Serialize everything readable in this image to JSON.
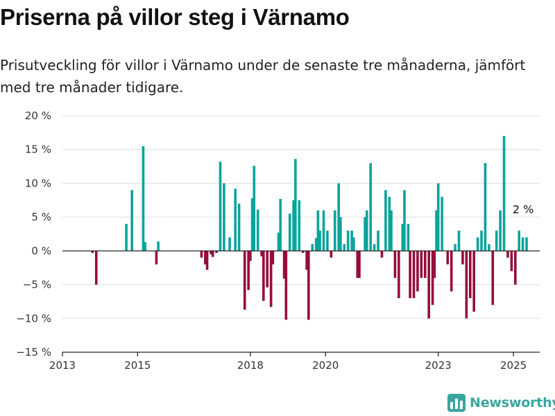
{
  "title": "Priserna på villor steg i Värnamo",
  "subtitle": "Prisutveckling för villor i Värnamo under de senaste tre månaderna, jämfört med tre månader tidigare.",
  "brand": {
    "name": "Newsworthy",
    "color": "#3aa6a0"
  },
  "colors": {
    "positive": "#0ca39b",
    "negative": "#960c3c",
    "axis": "#222222",
    "grid": "#dddddd"
  },
  "chart_data": {
    "type": "bar",
    "y_ticks": [
      "20 %",
      "15 %",
      "10 %",
      "5 %",
      "0 %",
      "−5 %",
      "−10 %",
      "−15 %"
    ],
    "y_tick_values": [
      20,
      15,
      10,
      5,
      0,
      -5,
      -10,
      -15
    ],
    "x_ticks": [
      "2013",
      "2015",
      "2018",
      "2020",
      "2023",
      "2025"
    ],
    "x_tick_values": [
      2013,
      2015,
      2018,
      2020,
      2023,
      2025
    ],
    "ylim": [
      -15,
      20
    ],
    "xlim": [
      2013,
      2025.7
    ],
    "grid": true,
    "annotation": {
      "text": "2 %",
      "x": 2025.0,
      "y": 2
    },
    "series": [
      {
        "values": [
          [
            2013.8,
            -0.3
          ],
          [
            2013.9,
            -5
          ],
          [
            2014.7,
            4
          ],
          [
            2014.85,
            9
          ],
          [
            2015.15,
            15.5
          ],
          [
            2015.2,
            1.3
          ],
          [
            2015.5,
            -2
          ],
          [
            2015.55,
            1.4
          ],
          [
            2016.7,
            -1
          ],
          [
            2016.8,
            -2
          ],
          [
            2016.85,
            -2.8
          ],
          [
            2016.95,
            -0.5
          ],
          [
            2017.0,
            -0.9
          ],
          [
            2017.1,
            -0.3
          ],
          [
            2017.2,
            13.2
          ],
          [
            2017.3,
            10
          ],
          [
            2017.45,
            2
          ],
          [
            2017.6,
            9.2
          ],
          [
            2017.7,
            7
          ],
          [
            2017.85,
            -8.7
          ],
          [
            2017.95,
            -5.8
          ],
          [
            2018.0,
            -1.5
          ],
          [
            2018.05,
            7.8
          ],
          [
            2018.1,
            12.6
          ],
          [
            2018.2,
            6.1
          ],
          [
            2018.3,
            -0.8
          ],
          [
            2018.35,
            -7.4
          ],
          [
            2018.45,
            -5.4
          ],
          [
            2018.55,
            -8.3
          ],
          [
            2018.6,
            -2
          ],
          [
            2018.75,
            2.7
          ],
          [
            2018.8,
            7.7
          ],
          [
            2018.9,
            -4.1
          ],
          [
            2018.95,
            -10.2
          ],
          [
            2019.05,
            5.5
          ],
          [
            2019.15,
            7.5
          ],
          [
            2019.2,
            13.6
          ],
          [
            2019.3,
            7.5
          ],
          [
            2019.4,
            -0.3
          ],
          [
            2019.5,
            -2.8
          ],
          [
            2019.55,
            -10.2
          ],
          [
            2019.65,
            1
          ],
          [
            2019.75,
            1.9
          ],
          [
            2019.8,
            6
          ],
          [
            2019.85,
            3
          ],
          [
            2019.95,
            6
          ],
          [
            2020.05,
            3
          ],
          [
            2020.15,
            -1
          ],
          [
            2020.25,
            6
          ],
          [
            2020.35,
            10
          ],
          [
            2020.4,
            5
          ],
          [
            2020.5,
            1
          ],
          [
            2020.6,
            3
          ],
          [
            2020.7,
            3
          ],
          [
            2020.75,
            2
          ],
          [
            2020.85,
            -4
          ],
          [
            2020.9,
            -4
          ],
          [
            2021.05,
            5
          ],
          [
            2021.1,
            6
          ],
          [
            2021.2,
            13
          ],
          [
            2021.3,
            1
          ],
          [
            2021.4,
            3
          ],
          [
            2021.5,
            -1
          ],
          [
            2021.6,
            9
          ],
          [
            2021.7,
            8
          ],
          [
            2021.75,
            6
          ],
          [
            2021.85,
            -4
          ],
          [
            2021.95,
            -7
          ],
          [
            2022.05,
            4
          ],
          [
            2022.1,
            9
          ],
          [
            2022.2,
            4
          ],
          [
            2022.25,
            -7
          ],
          [
            2022.35,
            -7
          ],
          [
            2022.45,
            -6
          ],
          [
            2022.55,
            -4
          ],
          [
            2022.65,
            -4
          ],
          [
            2022.75,
            -10
          ],
          [
            2022.85,
            -8
          ],
          [
            2022.9,
            -4
          ],
          [
            2022.95,
            6
          ],
          [
            2023.0,
            10
          ],
          [
            2023.1,
            8
          ],
          [
            2023.25,
            -2
          ],
          [
            2023.35,
            -6
          ],
          [
            2023.45,
            1
          ],
          [
            2023.55,
            3
          ],
          [
            2023.65,
            -2
          ],
          [
            2023.75,
            -10
          ],
          [
            2023.85,
            -7
          ],
          [
            2023.95,
            -9
          ],
          [
            2024.05,
            2
          ],
          [
            2024.15,
            3
          ],
          [
            2024.25,
            13
          ],
          [
            2024.35,
            1
          ],
          [
            2024.45,
            -8
          ],
          [
            2024.55,
            3
          ],
          [
            2024.65,
            6
          ],
          [
            2024.75,
            17
          ],
          [
            2024.85,
            -1
          ],
          [
            2024.95,
            -3
          ],
          [
            2025.05,
            -5
          ],
          [
            2025.15,
            3
          ],
          [
            2025.25,
            2
          ],
          [
            2025.35,
            2
          ]
        ]
      }
    ]
  }
}
